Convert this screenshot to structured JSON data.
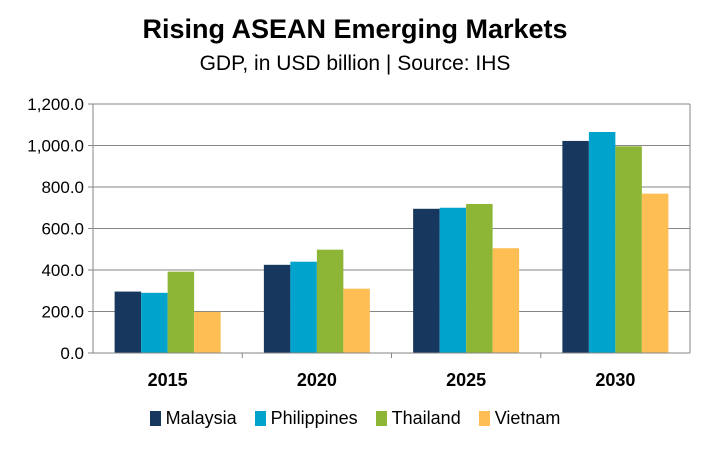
{
  "chart_data": {
    "type": "bar",
    "title": "Rising ASEAN  Emerging Markets",
    "subtitle": "GDP, in USD billion | Source: IHS",
    "categories": [
      "2015",
      "2020",
      "2025",
      "2030"
    ],
    "series": [
      {
        "name": "Malaysia",
        "color": "#17375E",
        "values": [
          296,
          425,
          695,
          1022
        ]
      },
      {
        "name": "Philippines",
        "color": "#00A3CC",
        "values": [
          290,
          440,
          700,
          1065
        ]
      },
      {
        "name": "Thailand",
        "color": "#8DB636",
        "values": [
          392,
          498,
          718,
          996
        ]
      },
      {
        "name": "Vietnam",
        "color": "#FFBE54",
        "values": [
          198,
          310,
          505,
          768
        ]
      }
    ],
    "ylim": [
      0,
      1200
    ],
    "yticks": [
      0,
      200,
      400,
      600,
      800,
      1000,
      1200
    ],
    "ytick_labels": [
      "0.0",
      "200.0",
      "400.0",
      "600.0",
      "800.0",
      "1,000.0",
      "1,200.0"
    ],
    "grid": true,
    "legend_position": "bottom"
  }
}
